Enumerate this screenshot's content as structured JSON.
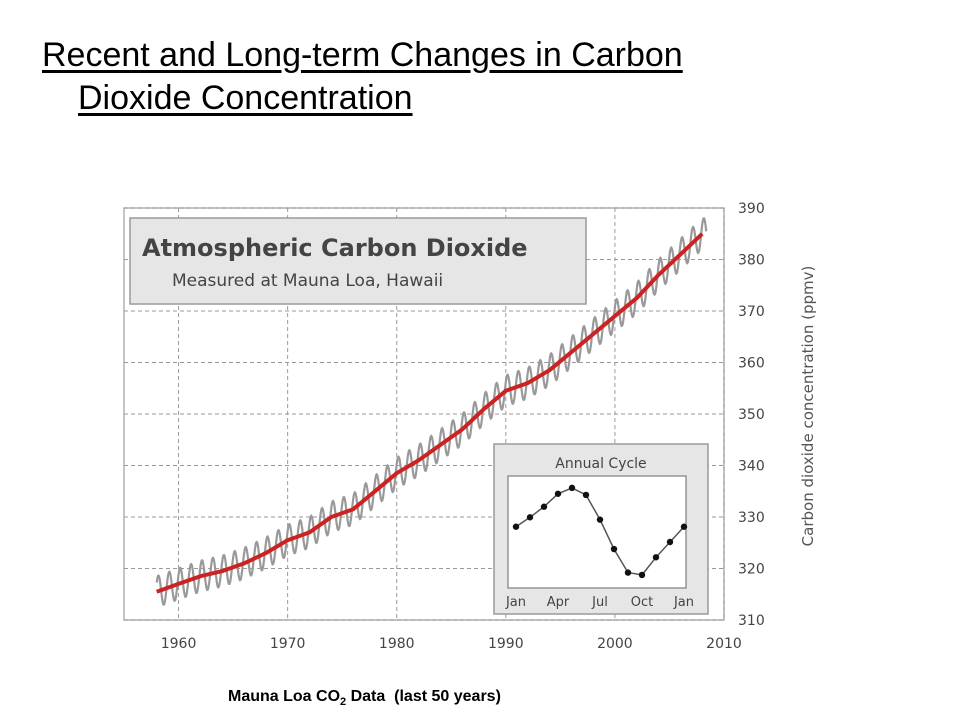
{
  "slide": {
    "title_line1": "Recent and Long-term Changes in Carbon",
    "title_line2": "Dioxide Concentration",
    "caption_main": "Mauna Loa CO",
    "caption_sub": "2",
    "caption_rest": " Data  (last 50 years)"
  },
  "chart_data": [
    {
      "type": "line",
      "title": "Atmospheric Carbon Dioxide",
      "subtitle": "Measured at Mauna Loa, Hawaii",
      "xlabel": "",
      "ylabel": "Carbon dioxide concentration (ppmv)",
      "xlim": [
        1955,
        2010
      ],
      "ylim": [
        310,
        390
      ],
      "x_ticks": [
        "1960",
        "1970",
        "1980",
        "1990",
        "2000",
        "2010"
      ],
      "y_ticks": [
        "390",
        "380",
        "370",
        "360",
        "350",
        "340",
        "330",
        "320",
        "310"
      ],
      "grid": true,
      "y_axis_side": "right",
      "colors": {
        "trend": "#cc2222",
        "monthly": "#999999"
      },
      "seasonal_amplitude": 3,
      "series": [
        {
          "role": "annual trend",
          "x": [
            1958,
            1960,
            1962,
            1964,
            1966,
            1968,
            1970,
            1972,
            1974,
            1976,
            1978,
            1980,
            1982,
            1984,
            1986,
            1988,
            1990,
            1992,
            1994,
            1996,
            1998,
            2000,
            2002,
            2004,
            2006,
            2008
          ],
          "values": [
            315.5,
            317,
            318.5,
            319.5,
            321,
            323,
            325.5,
            327,
            330,
            331.5,
            335,
            338.5,
            341,
            344,
            347,
            351,
            354.5,
            356,
            358.5,
            362,
            365.5,
            369,
            372.5,
            377,
            381,
            385
          ]
        }
      ]
    },
    {
      "type": "line",
      "title": "Annual Cycle",
      "x_ticks": [
        "Jan",
        "Apr",
        "Jul",
        "Oct",
        "Jan"
      ],
      "markers": true,
      "series": [
        {
          "x": [
            1,
            2,
            3,
            4,
            5,
            6,
            7,
            8,
            9,
            10,
            11,
            12,
            13
          ],
          "values": [
            3.2,
            4.0,
            4.9,
            6.0,
            6.5,
            5.9,
            3.8,
            1.3,
            -0.7,
            -0.9,
            0.6,
            1.9,
            3.2
          ]
        }
      ]
    }
  ]
}
